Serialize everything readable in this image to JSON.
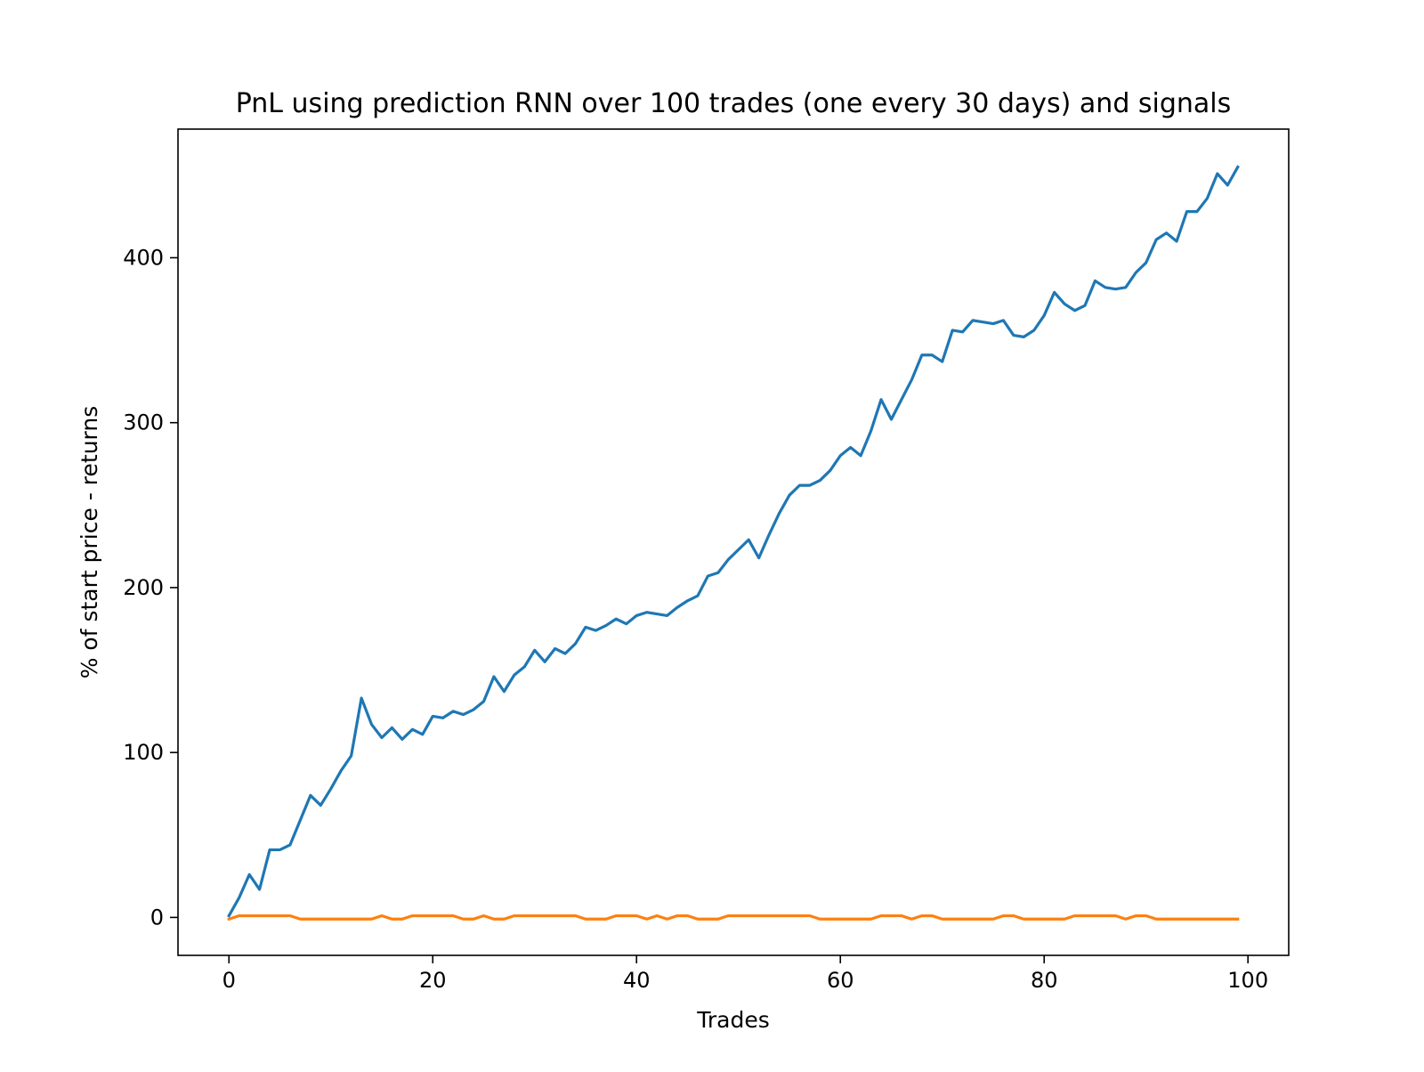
{
  "chart_data": {
    "type": "line",
    "title": "PnL using prediction RNN over 100 trades (one every 30 days) and signals",
    "xlabel": "Trades",
    "ylabel": "% of start price - returns",
    "xlim": [
      -5,
      104
    ],
    "ylim": [
      -23,
      478
    ],
    "x_ticks": [
      0,
      20,
      40,
      60,
      80,
      100
    ],
    "y_ticks": [
      0,
      100,
      200,
      300,
      400
    ],
    "x_tick_labels": [
      "0",
      "20",
      "40",
      "60",
      "80",
      "100"
    ],
    "y_tick_labels": [
      "0",
      "100",
      "200",
      "300",
      "400"
    ],
    "grid": false,
    "legend": "none",
    "series": [
      {
        "color": "#1f77b4",
        "x": [
          0,
          1,
          2,
          3,
          4,
          5,
          6,
          7,
          8,
          9,
          10,
          11,
          12,
          13,
          14,
          15,
          16,
          17,
          18,
          19,
          20,
          21,
          22,
          23,
          24,
          25,
          26,
          27,
          28,
          29,
          30,
          31,
          32,
          33,
          34,
          35,
          36,
          37,
          38,
          39,
          40,
          41,
          42,
          43,
          44,
          45,
          46,
          47,
          48,
          49,
          50,
          51,
          52,
          53,
          54,
          55,
          56,
          57,
          58,
          59,
          60,
          61,
          62,
          63,
          64,
          65,
          66,
          67,
          68,
          69,
          70,
          71,
          72,
          73,
          74,
          75,
          76,
          77,
          78,
          79,
          80,
          81,
          82,
          83,
          84,
          85,
          86,
          87,
          88,
          89,
          90,
          91,
          92,
          93,
          94,
          95,
          96,
          97,
          98,
          99
        ],
        "values": [
          1,
          12,
          26,
          17,
          41,
          41,
          44,
          59,
          74,
          68,
          78,
          89,
          98,
          133,
          117,
          109,
          115,
          108,
          114,
          111,
          122,
          121,
          125,
          123,
          126,
          131,
          146,
          137,
          147,
          152,
          162,
          155,
          163,
          160,
          166,
          176,
          174,
          177,
          181,
          178,
          183,
          185,
          184,
          183,
          188,
          192,
          195,
          207,
          209,
          217,
          223,
          229,
          218,
          232,
          245,
          256,
          262,
          262,
          265,
          271,
          280,
          285,
          280,
          295,
          314,
          302,
          314,
          326,
          341,
          341,
          337,
          356,
          355,
          362,
          361,
          360,
          362,
          353,
          352,
          356,
          365,
          379,
          372,
          368,
          371,
          386,
          382,
          381,
          382,
          391,
          397,
          411,
          415,
          410,
          428,
          428,
          436,
          451,
          444,
          455
        ]
      },
      {
        "color": "#ff7f0e",
        "x": [
          0,
          1,
          2,
          3,
          4,
          5,
          6,
          7,
          8,
          9,
          10,
          11,
          12,
          13,
          14,
          15,
          16,
          17,
          18,
          19,
          20,
          21,
          22,
          23,
          24,
          25,
          26,
          27,
          28,
          29,
          30,
          31,
          32,
          33,
          34,
          35,
          36,
          37,
          38,
          39,
          40,
          41,
          42,
          43,
          44,
          45,
          46,
          47,
          48,
          49,
          50,
          51,
          52,
          53,
          54,
          55,
          56,
          57,
          58,
          59,
          60,
          61,
          62,
          63,
          64,
          65,
          66,
          67,
          68,
          69,
          70,
          71,
          72,
          73,
          74,
          75,
          76,
          77,
          78,
          79,
          80,
          81,
          82,
          83,
          84,
          85,
          86,
          87,
          88,
          89,
          90,
          91,
          92,
          93,
          94,
          95,
          96,
          97,
          98,
          99
        ],
        "values": [
          -1,
          1,
          1,
          1,
          1,
          1,
          1,
          -1,
          -1,
          -1,
          -1,
          -1,
          -1,
          -1,
          -1,
          1,
          -1,
          -1,
          1,
          1,
          1,
          1,
          1,
          -1,
          -1,
          1,
          -1,
          -1,
          1,
          1,
          1,
          1,
          1,
          1,
          1,
          -1,
          -1,
          -1,
          1,
          1,
          1,
          -1,
          1,
          -1,
          1,
          1,
          -1,
          -1,
          -1,
          1,
          1,
          1,
          1,
          1,
          1,
          1,
          1,
          1,
          -1,
          -1,
          -1,
          -1,
          -1,
          -1,
          1,
          1,
          1,
          -1,
          1,
          1,
          -1,
          -1,
          -1,
          -1,
          -1,
          -1,
          1,
          1,
          -1,
          -1,
          -1,
          -1,
          -1,
          1,
          1,
          1,
          1,
          1,
          -1,
          1,
          1,
          -1,
          -1,
          -1,
          -1,
          -1,
          -1,
          -1,
          -1,
          -1
        ]
      }
    ]
  }
}
